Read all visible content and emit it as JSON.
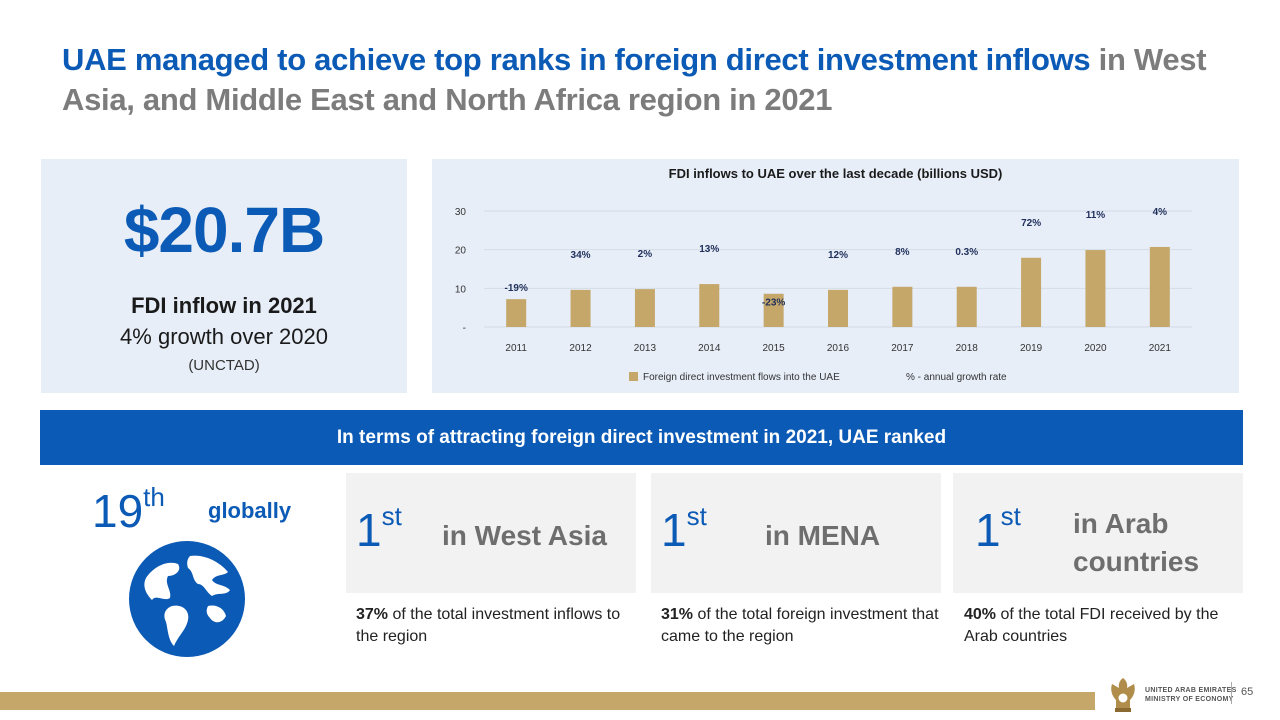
{
  "title": {
    "highlight": "UAE managed to achieve top ranks in foreign direct investment inflows",
    "rest": " in West Asia, and Middle East and North Africa region in 2021"
  },
  "kpi": {
    "value": "$20.7B",
    "line1": "FDI inflow  in 2021",
    "line2": "4% growth over 2020",
    "line3": "(UNCTAD)"
  },
  "chart_data": {
    "type": "bar",
    "title": "FDI inflows to UAE over the last decade (billions USD)",
    "categories": [
      "2011",
      "2012",
      "2013",
      "2014",
      "2015",
      "2016",
      "2017",
      "2018",
      "2019",
      "2020",
      "2021"
    ],
    "series": [
      {
        "name": "Foreign direct investment flows into the UAE",
        "values": [
          7.2,
          9.6,
          9.8,
          11.1,
          8.6,
          9.6,
          10.4,
          10.4,
          17.9,
          19.9,
          20.7
        ]
      }
    ],
    "growth_labels": [
      "-19%",
      "34%",
      "2%",
      "13%",
      "-23%",
      "12%",
      "8%",
      "0.3%",
      "72%",
      "11%",
      "4%"
    ],
    "growth_series_name": "% - annual growth rate",
    "yticks": [
      "-",
      "10",
      "20",
      "30"
    ],
    "ylim": [
      0,
      30
    ],
    "bar_color": "#c5a76a",
    "grid": true,
    "legend": "bottom"
  },
  "banner": "In terms of attracting foreign direct investment in 2021, UAE ranked",
  "global": {
    "rank": "19",
    "suffix": "th",
    "label": "globally"
  },
  "cards": [
    {
      "rank": "1",
      "suffix": "st",
      "label": "in West Asia",
      "desc_bold": "37%",
      "desc": " of the total investment inflows to the region"
    },
    {
      "rank": "1",
      "suffix": "st",
      "label": "in MENA",
      "desc_bold": "31%",
      "desc": " of the total foreign investment that came to the region"
    },
    {
      "rank": "1",
      "suffix": "st",
      "label": "in Arab countries",
      "desc_bold": "40%",
      "desc": " of the total FDI received by the Arab countries"
    }
  ],
  "footer": {
    "org_line1": "UNITED ARAB EMIRATES",
    "org_line2": "MINISTRY OF ECONOMY",
    "page": "65"
  },
  "colors": {
    "primary": "#0b5ab5",
    "gold": "#c5a76a",
    "panel": "#e7eef8"
  }
}
